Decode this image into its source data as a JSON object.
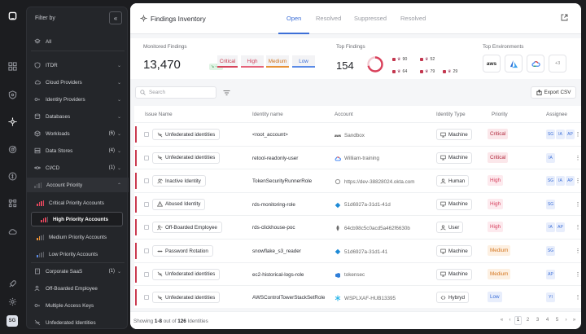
{
  "filter": {
    "title": "Filter by",
    "items": [
      {
        "label": "All",
        "count": ""
      },
      {
        "label": "ITDR",
        "count": ""
      },
      {
        "label": "Cloud Providers",
        "count": ""
      },
      {
        "label": "Identity Providers",
        "count": ""
      },
      {
        "label": "Databases",
        "count": ""
      },
      {
        "label": "Workloads",
        "count": "(6)"
      },
      {
        "label": "Data Stores",
        "count": "(4)"
      },
      {
        "label": "CI/CD",
        "count": "(1)"
      },
      {
        "label": "Account Priority",
        "count": ""
      },
      {
        "label": "Critical Priority Accounts",
        "count": ""
      },
      {
        "label": "High Priority Accounts",
        "count": ""
      },
      {
        "label": "Medium Priority Accounts",
        "count": ""
      },
      {
        "label": "Low Priority Accounts",
        "count": ""
      },
      {
        "label": "Corporate SaaS",
        "count": "(1)"
      },
      {
        "label": "Off-Boarded Employee",
        "count": ""
      },
      {
        "label": "Multiple Access Keys",
        "count": ""
      },
      {
        "label": "Unfederated Identities",
        "count": ""
      }
    ]
  },
  "user_initials": "SG",
  "header": {
    "title": "Findings Inventory",
    "tabs": [
      "Open",
      "Resolved",
      "Suppressed",
      "Resolved"
    ]
  },
  "metrics": {
    "monitored_label": "Monitored Findings",
    "monitored_value": "13,470",
    "monitored_delta": "↘ -12",
    "priorities": [
      "Critical",
      "High",
      "Medium",
      "Low"
    ],
    "top_findings_label": "Top Findings",
    "top_findings_value": "154",
    "top_findings_counts": [
      "90",
      "52",
      "64",
      "79",
      "29"
    ],
    "top_env_label": "Top Environments",
    "env_aws": "aws",
    "env_more": "+3"
  },
  "toolbar": {
    "search_placeholder": "Search",
    "export_label": "Export CSV"
  },
  "table": {
    "columns": [
      "Issue Name",
      "Identity name",
      "Account",
      "Identity Type",
      "Priority",
      "Assignee"
    ],
    "rows": [
      {
        "issue": "Unfederated identities",
        "identity": "<root_account>",
        "account": "Sandbox",
        "type": "Machine",
        "priority": "Critical",
        "assignees": [
          "SG",
          "IA",
          "AP"
        ]
      },
      {
        "issue": "Unfederated identities",
        "identity": "retool-readonly-user",
        "account": "William-training",
        "type": "Machine",
        "priority": "Critical",
        "assignees": [
          "IA"
        ]
      },
      {
        "issue": "Inactive Identity",
        "identity": "TokenSecurityRunnerRole",
        "account": "https://dev-38828024.okta.com",
        "type": "Human",
        "priority": "High",
        "assignees": [
          "SG",
          "IA",
          "AP"
        ]
      },
      {
        "issue": "Abused Identity",
        "identity": "rds-monitoring-role",
        "account": "51d6927a-31d1-41d",
        "type": "Machine",
        "priority": "High",
        "assignees": [
          "SG"
        ]
      },
      {
        "issue": "Off-Boarded Employee",
        "identity": "rds-clickhouse-poc",
        "account": "64cb98c5c0acd5a462f6630b",
        "type": "User",
        "priority": "High",
        "assignees": [
          "IA",
          "AP"
        ]
      },
      {
        "issue": "Password Rotation",
        "identity": "snowflake_s3_reader",
        "account": "51d6927a-31d1-41",
        "type": "Machine",
        "priority": "Medium",
        "assignees": [
          "SG"
        ]
      },
      {
        "issue": "Unfederated identities",
        "identity": "ec2-historical-logs-role",
        "account": "tokensec",
        "type": "Machine",
        "priority": "Medium",
        "assignees": [
          "AP"
        ]
      },
      {
        "issue": "Unfederated identities",
        "identity": "AWSControlTowerStackSetRole",
        "account": "WSPLXAF-HUB13395",
        "type": "Hybryd",
        "priority": "Low",
        "assignees": [
          "YI"
        ]
      }
    ]
  },
  "footer": {
    "showing_prefix": "Showing",
    "showing_range": "1-8",
    "showing_mid": "out of",
    "showing_total": "126",
    "showing_suffix": "Identities",
    "pages": [
      "1",
      "2",
      "3",
      "4",
      "5"
    ]
  }
}
